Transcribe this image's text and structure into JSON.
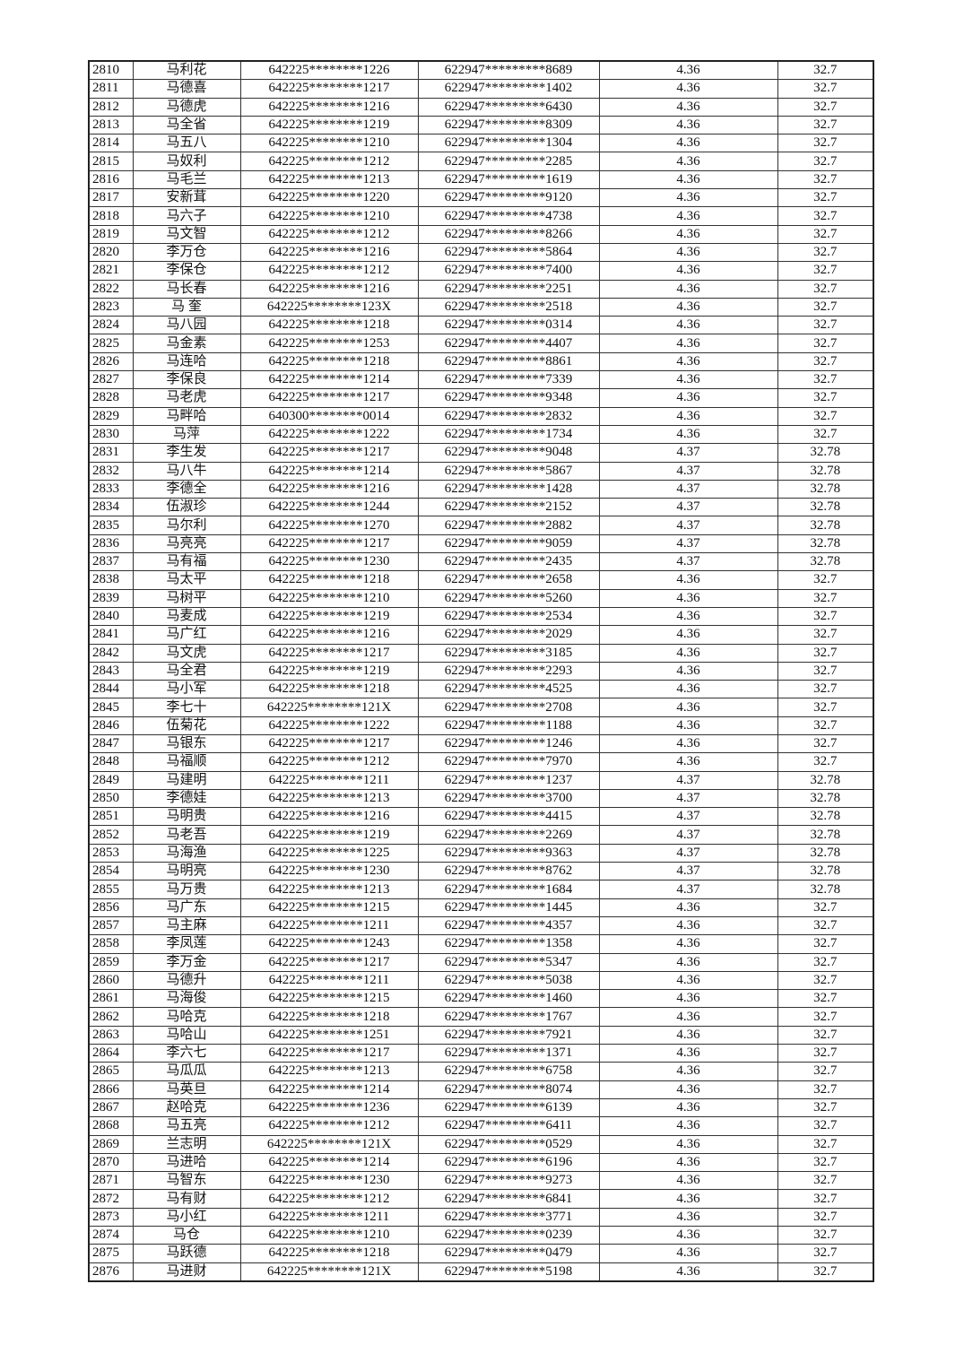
{
  "table": {
    "rows": [
      [
        "2810",
        "马利花",
        "642225********1226",
        "622947*********8689",
        "4.36",
        "32.7"
      ],
      [
        "2811",
        "马德喜",
        "642225********1217",
        "622947*********1402",
        "4.36",
        "32.7"
      ],
      [
        "2812",
        "马德虎",
        "642225********1216",
        "622947*********6430",
        "4.36",
        "32.7"
      ],
      [
        "2813",
        "马全省",
        "642225********1219",
        "622947*********8309",
        "4.36",
        "32.7"
      ],
      [
        "2814",
        "马五八",
        "642225********1210",
        "622947*********1304",
        "4.36",
        "32.7"
      ],
      [
        "2815",
        "马奴利",
        "642225********1212",
        "622947*********2285",
        "4.36",
        "32.7"
      ],
      [
        "2816",
        "马毛兰",
        "642225********1213",
        "622947*********1619",
        "4.36",
        "32.7"
      ],
      [
        "2817",
        "安新茸",
        "642225********1220",
        "622947*********9120",
        "4.36",
        "32.7"
      ],
      [
        "2818",
        "马六子",
        "642225********1210",
        "622947*********4738",
        "4.36",
        "32.7"
      ],
      [
        "2819",
        "马文智",
        "642225********1212",
        "622947*********8266",
        "4.36",
        "32.7"
      ],
      [
        "2820",
        "李万仓",
        "642225********1216",
        "622947*********5864",
        "4.36",
        "32.7"
      ],
      [
        "2821",
        "李保仓",
        "642225********1212",
        "622947*********7400",
        "4.36",
        "32.7"
      ],
      [
        "2822",
        "马长春",
        "642225********1216",
        "622947*********2251",
        "4.36",
        "32.7"
      ],
      [
        "2823",
        "马 奎",
        "642225********123X",
        "622947*********2518",
        "4.36",
        "32.7"
      ],
      [
        "2824",
        "马八园",
        "642225********1218",
        "622947*********0314",
        "4.36",
        "32.7"
      ],
      [
        "2825",
        "马金素",
        "642225********1253",
        "622947*********4407",
        "4.36",
        "32.7"
      ],
      [
        "2826",
        "马连哈",
        "642225********1218",
        "622947*********8861",
        "4.36",
        "32.7"
      ],
      [
        "2827",
        "李保良",
        "642225********1214",
        "622947*********7339",
        "4.36",
        "32.7"
      ],
      [
        "2828",
        "马老虎",
        "642225********1217",
        "622947*********9348",
        "4.36",
        "32.7"
      ],
      [
        "2829",
        "马畔哈",
        "640300********0014",
        "622947*********2832",
        "4.36",
        "32.7"
      ],
      [
        "2830",
        "马萍",
        "642225********1222",
        "622947*********1734",
        "4.36",
        "32.7"
      ],
      [
        "2831",
        "李生发",
        "642225********1217",
        "622947*********9048",
        "4.37",
        "32.78"
      ],
      [
        "2832",
        "马八牛",
        "642225********1214",
        "622947*********5867",
        "4.37",
        "32.78"
      ],
      [
        "2833",
        "李德全",
        "642225********1216",
        "622947*********1428",
        "4.37",
        "32.78"
      ],
      [
        "2834",
        "伍淑珍",
        "642225********1244",
        "622947*********2152",
        "4.37",
        "32.78"
      ],
      [
        "2835",
        "马尔利",
        "642225********1270",
        "622947*********2882",
        "4.37",
        "32.78"
      ],
      [
        "2836",
        "马亮亮",
        "642225********1217",
        "622947*********9059",
        "4.37",
        "32.78"
      ],
      [
        "2837",
        "马有福",
        "642225********1230",
        "622947*********2435",
        "4.37",
        "32.78"
      ],
      [
        "2838",
        "马太平",
        "642225********1218",
        "622947*********2658",
        "4.36",
        "32.7"
      ],
      [
        "2839",
        "马树平",
        "642225********1210",
        "622947*********5260",
        "4.36",
        "32.7"
      ],
      [
        "2840",
        "马麦成",
        "642225********1219",
        "622947*********2534",
        "4.36",
        "32.7"
      ],
      [
        "2841",
        "马广红",
        "642225********1216",
        "622947*********2029",
        "4.36",
        "32.7"
      ],
      [
        "2842",
        "马文虎",
        "642225********1217",
        "622947*********3185",
        "4.36",
        "32.7"
      ],
      [
        "2843",
        "马全君",
        "642225********1219",
        "622947*********2293",
        "4.36",
        "32.7"
      ],
      [
        "2844",
        "马小军",
        "642225********1218",
        "622947*********4525",
        "4.36",
        "32.7"
      ],
      [
        "2845",
        "李七十",
        "642225********121X",
        "622947*********2708",
        "4.36",
        "32.7"
      ],
      [
        "2846",
        "伍菊花",
        "642225********1222",
        "622947*********1188",
        "4.36",
        "32.7"
      ],
      [
        "2847",
        "马银东",
        "642225********1217",
        "622947*********1246",
        "4.36",
        "32.7"
      ],
      [
        "2848",
        "马福顺",
        "642225********1212",
        "622947*********7970",
        "4.36",
        "32.7"
      ],
      [
        "2849",
        "马建明",
        "642225********1211",
        "622947*********1237",
        "4.37",
        "32.78"
      ],
      [
        "2850",
        "李德娃",
        "642225********1213",
        "622947*********3700",
        "4.37",
        "32.78"
      ],
      [
        "2851",
        "马明贵",
        "642225********1216",
        "622947*********4415",
        "4.37",
        "32.78"
      ],
      [
        "2852",
        "马老吾",
        "642225********1219",
        "622947*********2269",
        "4.37",
        "32.78"
      ],
      [
        "2853",
        "马海渔",
        "642225********1225",
        "622947*********9363",
        "4.37",
        "32.78"
      ],
      [
        "2854",
        "马明亮",
        "642225********1230",
        "622947*********8762",
        "4.37",
        "32.78"
      ],
      [
        "2855",
        "马万贵",
        "642225********1213",
        "622947*********1684",
        "4.37",
        "32.78"
      ],
      [
        "2856",
        "马广东",
        "642225********1215",
        "622947*********1445",
        "4.36",
        "32.7"
      ],
      [
        "2857",
        "马主麻",
        "642225********1211",
        "622947*********4357",
        "4.36",
        "32.7"
      ],
      [
        "2858",
        "李凤莲",
        "642225********1243",
        "622947*********1358",
        "4.36",
        "32.7"
      ],
      [
        "2859",
        "李万金",
        "642225********1217",
        "622947*********5347",
        "4.36",
        "32.7"
      ],
      [
        "2860",
        "马德升",
        "642225********1211",
        "622947*********5038",
        "4.36",
        "32.7"
      ],
      [
        "2861",
        "马海俊",
        "642225********1215",
        "622947*********1460",
        "4.36",
        "32.7"
      ],
      [
        "2862",
        "马哈克",
        "642225********1218",
        "622947*********1767",
        "4.36",
        "32.7"
      ],
      [
        "2863",
        "马哈山",
        "642225********1251",
        "622947*********7921",
        "4.36",
        "32.7"
      ],
      [
        "2864",
        "李六七",
        "642225********1217",
        "622947*********1371",
        "4.36",
        "32.7"
      ],
      [
        "2865",
        "马瓜瓜",
        "642225********1213",
        "622947*********6758",
        "4.36",
        "32.7"
      ],
      [
        "2866",
        "马英旦",
        "642225********1214",
        "622947*********8074",
        "4.36",
        "32.7"
      ],
      [
        "2867",
        "赵哈克",
        "642225********1236",
        "622947*********6139",
        "4.36",
        "32.7"
      ],
      [
        "2868",
        "马五亮",
        "642225********1212",
        "622947*********6411",
        "4.36",
        "32.7"
      ],
      [
        "2869",
        "兰志明",
        "642225********121X",
        "622947*********0529",
        "4.36",
        "32.7"
      ],
      [
        "2870",
        "马进哈",
        "642225********1214",
        "622947*********6196",
        "4.36",
        "32.7"
      ],
      [
        "2871",
        "马智东",
        "642225********1230",
        "622947*********9273",
        "4.36",
        "32.7"
      ],
      [
        "2872",
        "马有财",
        "642225********1212",
        "622947*********6841",
        "4.36",
        "32.7"
      ],
      [
        "2873",
        "马小红",
        "642225********1211",
        "622947*********3771",
        "4.36",
        "32.7"
      ],
      [
        "2874",
        "马仓",
        "642225********1210",
        "622947*********0239",
        "4.36",
        "32.7"
      ],
      [
        "2875",
        "马跃德",
        "642225********1218",
        "622947*********0479",
        "4.36",
        "32.7"
      ],
      [
        "2876",
        "马进财",
        "642225********121X",
        "622947*********5198",
        "4.36",
        "32.7"
      ]
    ]
  }
}
